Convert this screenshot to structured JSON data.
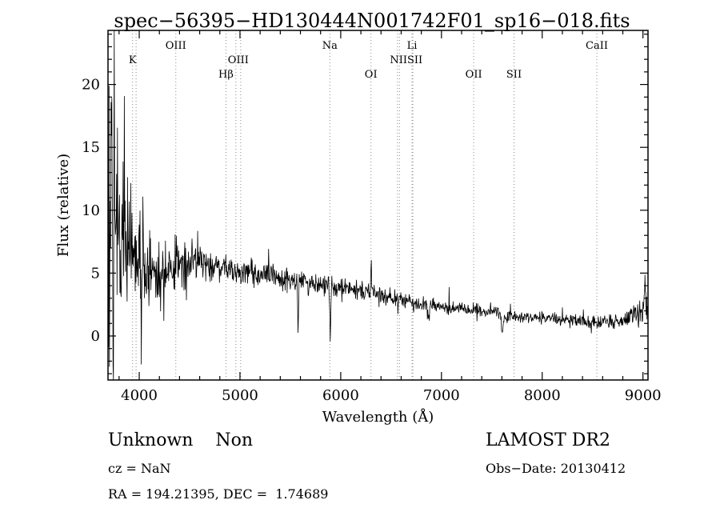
{
  "title": "spec−56395−HD130444N001742F01_sp16−018.fits",
  "footer": {
    "class_label": "Unknown    Non",
    "cz": "cz = NaN",
    "coords": "RA = 194.21395, DEC =  1.74689",
    "survey": "LAMOST DR2",
    "obs_date": "Obs−Date: 20130412"
  },
  "chart_data": {
    "type": "line",
    "title": "spec−56395−HD130444N001742F01_sp16−018.fits",
    "xlabel": "Wavelength (Å)",
    "ylabel": "Flux (relative)",
    "xlim": [
      3690,
      9050
    ],
    "ylim": [
      -3.5,
      24.3
    ],
    "x_major_ticks": [
      4000,
      5000,
      6000,
      7000,
      8000,
      9000
    ],
    "y_major_ticks": [
      0,
      5,
      10,
      15,
      20
    ],
    "x_minor_step": 200,
    "y_minor_step": 1,
    "grid": false,
    "legend": "none",
    "line_color": "#000000",
    "marker_line_color": "#8a8a8a",
    "marker_line_style": "dotted",
    "line_markers": [
      3934,
      3969,
      4363,
      4861,
      4959,
      5007,
      5892,
      6300,
      6563,
      6583,
      6708,
      6716,
      7320,
      7720,
      8542
    ],
    "marker_labels": [
      {
        "text": "K",
        "wavelength": 3934,
        "row": 2
      },
      {
        "text": "OIII",
        "wavelength": 4363,
        "row": 1
      },
      {
        "text": "Hβ",
        "wavelength": 4861,
        "row": 3
      },
      {
        "text": "OIII",
        "wavelength": 4983,
        "row": 2
      },
      {
        "text": "Na",
        "wavelength": 5892,
        "row": 1
      },
      {
        "text": "OI",
        "wavelength": 6300,
        "row": 3
      },
      {
        "text": "NIISII",
        "wavelength": 6650,
        "row": 2
      },
      {
        "text": "Li",
        "wavelength": 6708,
        "row": 1
      },
      {
        "text": "OII",
        "wavelength": 7320,
        "row": 3
      },
      {
        "text": "SII",
        "wavelength": 7720,
        "row": 3
      },
      {
        "text": "CaII",
        "wavelength": 8542,
        "row": 1
      }
    ],
    "continuum_points": [
      [
        3690,
        9.0
      ],
      [
        3720,
        9.0
      ],
      [
        3760,
        8.5
      ],
      [
        3800,
        8.0
      ],
      [
        3850,
        7.8
      ],
      [
        3900,
        7.2
      ],
      [
        3950,
        6.8
      ],
      [
        4000,
        6.2
      ],
      [
        4050,
        5.6
      ],
      [
        4100,
        5.2
      ],
      [
        4150,
        5.0
      ],
      [
        4250,
        5.3
      ],
      [
        4350,
        5.6
      ],
      [
        4450,
        5.8
      ],
      [
        4550,
        5.9
      ],
      [
        4650,
        5.8
      ],
      [
        4750,
        5.6
      ],
      [
        4850,
        5.3
      ],
      [
        4950,
        5.2
      ],
      [
        5050,
        5.1
      ],
      [
        5150,
        5.0
      ],
      [
        5250,
        4.9
      ],
      [
        5350,
        4.7
      ],
      [
        5450,
        4.5
      ],
      [
        5550,
        4.4
      ],
      [
        5650,
        4.2
      ],
      [
        5750,
        4.1
      ],
      [
        5850,
        4.0
      ],
      [
        5950,
        3.9
      ],
      [
        6050,
        3.8
      ],
      [
        6150,
        3.6
      ],
      [
        6250,
        3.5
      ],
      [
        6350,
        3.4
      ],
      [
        6450,
        3.2
      ],
      [
        6550,
        3.0
      ],
      [
        6650,
        2.8
      ],
      [
        6750,
        2.6
      ],
      [
        6850,
        2.5
      ],
      [
        6950,
        2.4
      ],
      [
        7050,
        2.3
      ],
      [
        7150,
        2.2
      ],
      [
        7250,
        2.1
      ],
      [
        7350,
        2.0
      ],
      [
        7450,
        1.9
      ],
      [
        7550,
        1.8
      ],
      [
        7650,
        1.6
      ],
      [
        7750,
        1.5
      ],
      [
        7850,
        1.5
      ],
      [
        7950,
        1.4
      ],
      [
        8050,
        1.4
      ],
      [
        8150,
        1.3
      ],
      [
        8250,
        1.3
      ],
      [
        8350,
        1.2
      ],
      [
        8450,
        1.2
      ],
      [
        8550,
        1.1
      ],
      [
        8650,
        1.1
      ],
      [
        8750,
        1.2
      ],
      [
        8850,
        1.4
      ],
      [
        8950,
        1.7
      ],
      [
        9050,
        2.5
      ]
    ],
    "noise_amplitude_points": [
      [
        3690,
        12
      ],
      [
        3730,
        11
      ],
      [
        3770,
        8
      ],
      [
        3820,
        6
      ],
      [
        3870,
        5
      ],
      [
        3920,
        4.5
      ],
      [
        3970,
        4
      ],
      [
        4020,
        3.2
      ],
      [
        4120,
        2.6
      ],
      [
        4220,
        2.2
      ],
      [
        4320,
        2.0
      ],
      [
        4420,
        1.8
      ],
      [
        4520,
        1.5
      ],
      [
        4620,
        1.3
      ],
      [
        4720,
        1.2
      ],
      [
        4820,
        1.1
      ],
      [
        4920,
        1.0
      ],
      [
        5120,
        0.95
      ],
      [
        5320,
        0.9
      ],
      [
        5520,
        0.85
      ],
      [
        5720,
        0.8
      ],
      [
        5920,
        0.75
      ],
      [
        6120,
        0.7
      ],
      [
        6320,
        0.65
      ],
      [
        6520,
        0.6
      ],
      [
        6720,
        0.55
      ],
      [
        6920,
        0.5
      ],
      [
        7120,
        0.5
      ],
      [
        7320,
        0.48
      ],
      [
        7520,
        0.45
      ],
      [
        7720,
        0.45
      ],
      [
        7920,
        0.42
      ],
      [
        8120,
        0.42
      ],
      [
        8320,
        0.45
      ],
      [
        8520,
        0.45
      ],
      [
        8720,
        0.5
      ],
      [
        8820,
        0.6
      ],
      [
        8920,
        0.8
      ],
      [
        9050,
        1.1
      ]
    ],
    "features": [
      {
        "wavelength": 3727,
        "delta": 9.0,
        "width": 6
      },
      {
        "wavelength": 5577,
        "delta": -4.2,
        "width": 6
      },
      {
        "wavelength": 5896,
        "delta": -4.3,
        "width": 7
      },
      {
        "wavelength": 6301,
        "delta": 2.8,
        "width": 5
      },
      {
        "wavelength": 6869,
        "delta": -1.1,
        "width": 12
      },
      {
        "wavelength": 7605,
        "delta": -1.2,
        "width": 15
      },
      {
        "wavelength": 9020,
        "delta": 2.0,
        "width": 10
      }
    ],
    "noise_seed": 20130412,
    "sample_step_angstrom": 4
  }
}
